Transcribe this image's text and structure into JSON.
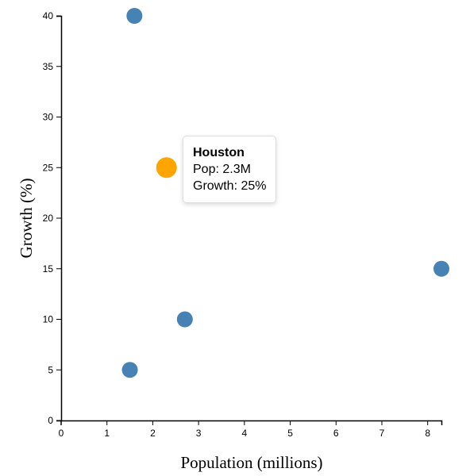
{
  "chart_data": {
    "type": "scatter",
    "xlabel": "Population (millions)",
    "ylabel": "Growth (%)",
    "xlim": [
      0,
      8.3
    ],
    "ylim": [
      0,
      40
    ],
    "x_ticks": [
      0,
      1,
      2,
      3,
      4,
      5,
      6,
      7,
      8
    ],
    "y_ticks": [
      0,
      5,
      10,
      15,
      20,
      25,
      30,
      35,
      40
    ],
    "points": [
      {
        "x": 8.3,
        "y": 15,
        "highlighted": false
      },
      {
        "x": 2.7,
        "y": 10,
        "highlighted": false
      },
      {
        "x": 1.5,
        "y": 5,
        "highlighted": false
      },
      {
        "x": 1.6,
        "y": 40,
        "highlighted": false
      },
      {
        "x": 2.3,
        "y": 25,
        "highlighted": true
      }
    ],
    "colors": {
      "point": "#4682b4",
      "highlight": "#ffa500"
    },
    "grid": false
  },
  "tooltip": {
    "name": "Houston",
    "pop_text": "Pop: 2.3M",
    "growth_text": "Growth: 25%"
  }
}
